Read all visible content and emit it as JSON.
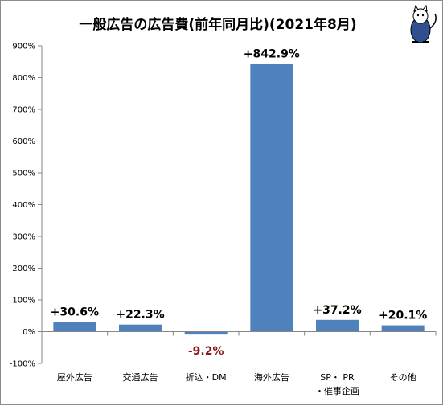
{
  "chart_data": {
    "type": "bar",
    "title": "一般広告の広告費(前年同月比)(2021年8月)",
    "categories": [
      "屋外広告",
      "交通広告",
      "折込・DM",
      "海外広告",
      "SP・PR・催事企画",
      "その他"
    ],
    "category_lines": [
      [
        "屋外広告"
      ],
      [
        "交通広告"
      ],
      [
        "折込・DM"
      ],
      [
        "海外広告"
      ],
      [
        "SP・ PR",
        "・催事企画"
      ],
      [
        "その他"
      ]
    ],
    "values": [
      30.6,
      22.3,
      -9.2,
      842.9,
      37.2,
      20.1
    ],
    "data_labels": [
      "+30.6%",
      "+22.3%",
      "-9.2%",
      "+842.9%",
      "+37.2%",
      "+20.1%"
    ],
    "y_ticks": [
      "-100%",
      "0%",
      "100%",
      "200%",
      "300%",
      "400%",
      "500%",
      "600%",
      "700%",
      "800%",
      "900%"
    ],
    "ylim": [
      -100,
      900
    ],
    "xlabel": "",
    "ylabel": "",
    "grid": false,
    "legend": "none",
    "colors": {
      "bar": "#4f81bd",
      "positive_label": "#000000",
      "negative_label": "#8b1a1a",
      "axis": "#868686"
    }
  },
  "mascot": {
    "icon": "cat-mascot-icon"
  }
}
